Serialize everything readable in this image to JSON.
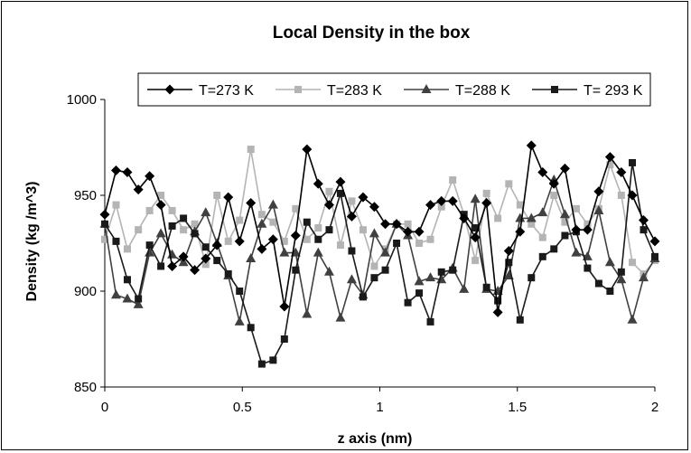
{
  "chart_data": {
    "type": "line",
    "title": "Local Density in the box",
    "xlabel": "z axis (nm)",
    "ylabel": "Density (kg /m^3)",
    "xlim": [
      0,
      2
    ],
    "ylim": [
      850,
      1000
    ],
    "xticks": [
      0,
      0.5,
      1,
      1.5,
      2
    ],
    "yticks": [
      850,
      900,
      950,
      1000
    ],
    "xtick_labels": [
      "0",
      "0.5",
      "1",
      "1.5",
      "2"
    ],
    "ytick_labels": [
      "850",
      "900",
      "950",
      "1000"
    ],
    "grid": false,
    "legend_position": "top",
    "series": [
      {
        "name": "T=273 K",
        "color": "#000000",
        "marker": "diamond",
        "x": [
          0.0,
          0.041,
          0.082,
          0.122,
          0.163,
          0.204,
          0.245,
          0.286,
          0.327,
          0.367,
          0.408,
          0.449,
          0.49,
          0.531,
          0.571,
          0.612,
          0.653,
          0.694,
          0.735,
          0.776,
          0.816,
          0.857,
          0.898,
          0.939,
          0.98,
          1.02,
          1.061,
          1.102,
          1.143,
          1.184,
          1.224,
          1.265,
          1.306,
          1.347,
          1.388,
          1.429,
          1.469,
          1.51,
          1.551,
          1.592,
          1.633,
          1.673,
          1.714,
          1.755,
          1.796,
          1.837,
          1.878,
          1.918,
          1.959,
          2.0
        ],
        "y": [
          940,
          963,
          962,
          953,
          960,
          945,
          913,
          918,
          911,
          917,
          924,
          949,
          926,
          946,
          922,
          927,
          892,
          929,
          974,
          956,
          945,
          957,
          939,
          949,
          944,
          935,
          935,
          931,
          931,
          945,
          947,
          947,
          938,
          928,
          946,
          889,
          921,
          931,
          976,
          962,
          956,
          964,
          932,
          932,
          952,
          970,
          962,
          950,
          937,
          926
        ]
      },
      {
        "name": "T=283 K",
        "color": "#b4b4b4",
        "marker": "square",
        "x": [
          0.0,
          0.041,
          0.082,
          0.122,
          0.163,
          0.204,
          0.245,
          0.286,
          0.327,
          0.367,
          0.408,
          0.449,
          0.49,
          0.531,
          0.571,
          0.612,
          0.653,
          0.694,
          0.735,
          0.776,
          0.816,
          0.857,
          0.898,
          0.939,
          0.98,
          1.02,
          1.061,
          1.102,
          1.143,
          1.184,
          1.224,
          1.265,
          1.306,
          1.347,
          1.388,
          1.429,
          1.469,
          1.51,
          1.551,
          1.592,
          1.633,
          1.673,
          1.714,
          1.755,
          1.796,
          1.837,
          1.878,
          1.918,
          1.959,
          2.0
        ],
        "y": [
          927,
          945,
          922,
          932,
          942,
          950,
          942,
          932,
          935,
          914,
          950,
          926,
          937,
          974,
          940,
          936,
          926,
          943,
          927,
          933,
          952,
          924,
          947,
          932,
          913,
          922,
          935,
          935,
          925,
          927,
          944,
          958,
          940,
          916,
          951,
          938,
          956,
          945,
          935,
          928,
          950,
          936,
          943,
          935,
          943,
          966,
          950,
          915,
          909,
          916
        ]
      },
      {
        "name": "T=288 K",
        "color": "#404040",
        "marker": "triangle",
        "x": [
          0.0,
          0.041,
          0.082,
          0.122,
          0.163,
          0.204,
          0.245,
          0.286,
          0.327,
          0.367,
          0.408,
          0.449,
          0.49,
          0.531,
          0.571,
          0.612,
          0.653,
          0.694,
          0.735,
          0.776,
          0.816,
          0.857,
          0.898,
          0.939,
          0.98,
          1.02,
          1.061,
          1.102,
          1.143,
          1.184,
          1.224,
          1.265,
          1.306,
          1.347,
          1.388,
          1.429,
          1.469,
          1.51,
          1.551,
          1.592,
          1.633,
          1.673,
          1.714,
          1.755,
          1.796,
          1.837,
          1.878,
          1.918,
          1.959,
          2.0
        ],
        "y": [
          935,
          898,
          896,
          893,
          920,
          930,
          919,
          915,
          931,
          941,
          925,
          908,
          884,
          917,
          935,
          945,
          920,
          920,
          888,
          920,
          910,
          886,
          906,
          898,
          930,
          920,
          935,
          929,
          905,
          907,
          906,
          912,
          901,
          948,
          901,
          900,
          908,
          938,
          938,
          941,
          958,
          940,
          920,
          918,
          942,
          915,
          906,
          885,
          907,
          917
        ]
      },
      {
        "name": "T= 293 K",
        "color": "#1a1a1a",
        "marker": "square",
        "x": [
          0.0,
          0.041,
          0.082,
          0.122,
          0.163,
          0.204,
          0.245,
          0.286,
          0.327,
          0.367,
          0.408,
          0.449,
          0.49,
          0.531,
          0.571,
          0.612,
          0.653,
          0.694,
          0.735,
          0.776,
          0.816,
          0.857,
          0.898,
          0.939,
          0.98,
          1.02,
          1.061,
          1.102,
          1.143,
          1.184,
          1.224,
          1.265,
          1.306,
          1.347,
          1.388,
          1.429,
          1.469,
          1.51,
          1.551,
          1.592,
          1.633,
          1.673,
          1.714,
          1.755,
          1.796,
          1.837,
          1.878,
          1.918,
          1.959,
          2.0
        ],
        "y": [
          935,
          926,
          906,
          896,
          924,
          913,
          934,
          938,
          930,
          923,
          916,
          909,
          900,
          881,
          862,
          864,
          875,
          911,
          936,
          927,
          932,
          951,
          921,
          897,
          907,
          911,
          925,
          894,
          899,
          884,
          910,
          911,
          940,
          933,
          902,
          895,
          915,
          885,
          907,
          918,
          922,
          929,
          931,
          912,
          904,
          900,
          910,
          967,
          932,
          918
        ]
      }
    ]
  }
}
